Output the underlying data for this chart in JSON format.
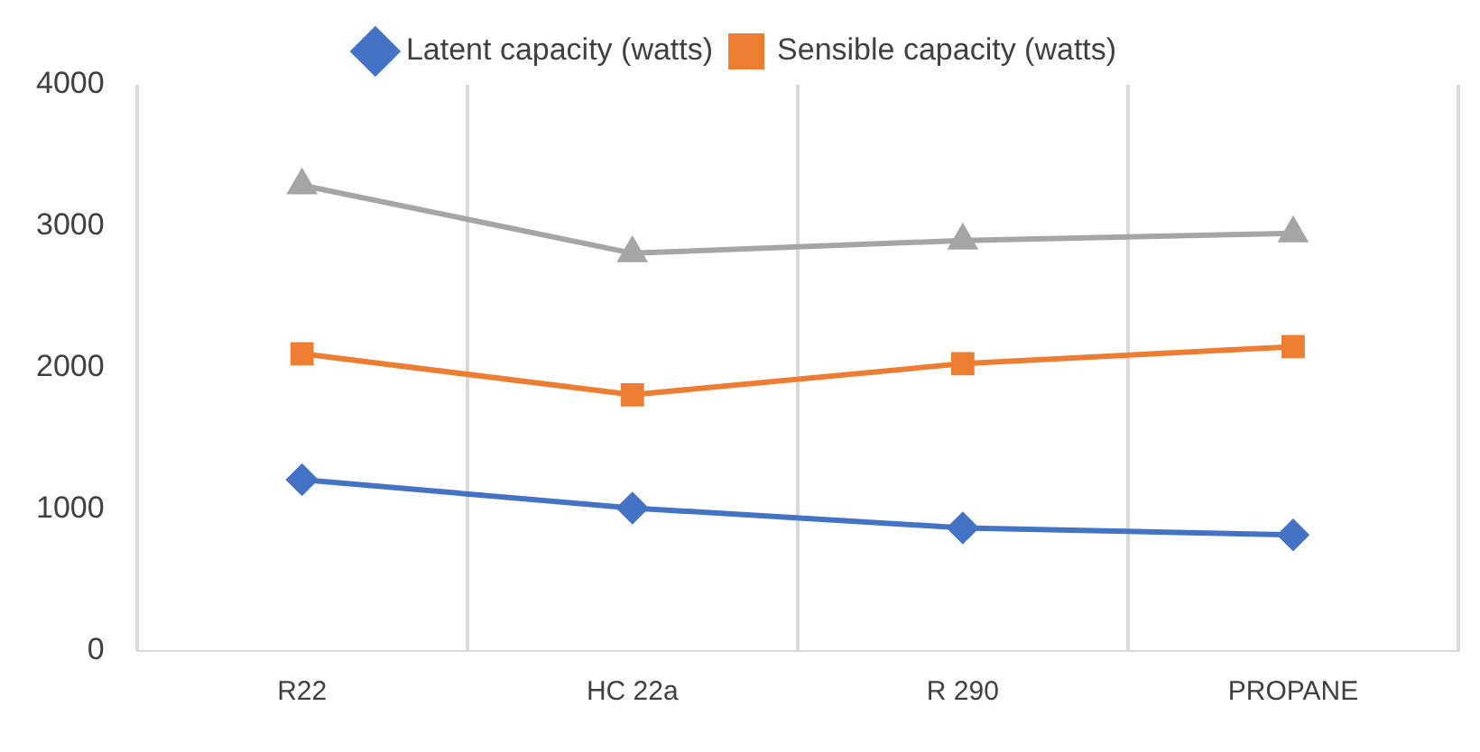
{
  "chart_data": {
    "type": "line",
    "categories": [
      "R22",
      "HC 22a",
      "R 290",
      "PROPANE"
    ],
    "series": [
      {
        "name": "Latent capacity (watts)",
        "color": "#4472c4",
        "marker": "diamond",
        "values": [
          1210,
          1010,
          870,
          820
        ]
      },
      {
        "name": "Sensible capacity (watts)",
        "color": "#ed7d31",
        "marker": "square",
        "values": [
          2100,
          1810,
          2030,
          2150
        ]
      },
      {
        "color": "#a5a5a5",
        "marker": "triangle",
        "values": [
          3290,
          2810,
          2900,
          2950
        ]
      }
    ],
    "ylim": [
      0,
      4000
    ],
    "yticks": [
      0,
      1000,
      2000,
      3000,
      4000
    ],
    "grid": "x",
    "legend": "top",
    "line_style": "solid"
  }
}
